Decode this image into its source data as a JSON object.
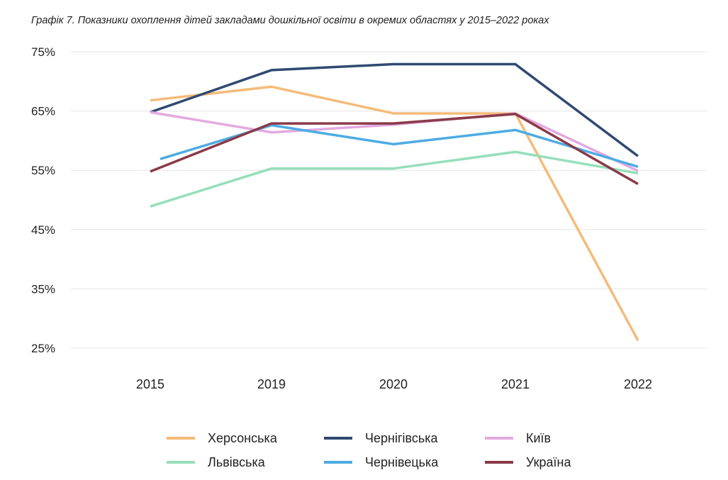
{
  "title": "Графік 7. Показники охоплення дітей закладами дошкільної освіти в окремих областях у 2015–2022 роках",
  "chart_data": {
    "type": "line",
    "title": "Графік 7. Показники охоплення дітей закладами дошкільної освіти в окремих областях у 2015–2022 роках",
    "xlabel": "",
    "ylabel": "",
    "categories": [
      "2015",
      "2019",
      "2020",
      "2021",
      "2022"
    ],
    "ylim": [
      25,
      75
    ],
    "yticks": [
      25,
      35,
      45,
      55,
      65,
      75
    ],
    "ytick_labels": [
      "25%",
      "35%",
      "45%",
      "55%",
      "65%",
      "75%"
    ],
    "grid": true,
    "legend_position": "bottom",
    "series": [
      {
        "name": "Херсонська",
        "color": "#f4bb79",
        "values": [
          66.8,
          69.1,
          64.6,
          64.6,
          26.3
        ]
      },
      {
        "name": "Чернігівська",
        "color": "#2f4a72",
        "values": [
          64.8,
          71.9,
          72.9,
          72.9,
          57.4
        ]
      },
      {
        "name": "Київ",
        "color": "#e3a9e0",
        "values": [
          64.8,
          61.4,
          62.7,
          64.6,
          54.9
        ]
      },
      {
        "name": "Львівська",
        "color": "#96dfba",
        "values": [
          48.9,
          55.3,
          55.3,
          58.1,
          54.5
        ]
      },
      {
        "name": "Чернівецька",
        "color": "#4dace3",
        "values": [
          56.9,
          62.6,
          59.4,
          61.8,
          55.6
        ]
      },
      {
        "name": "Україна",
        "color": "#8a3a47",
        "values": [
          54.8,
          62.9,
          62.9,
          64.5,
          52.7
        ]
      }
    ],
    "series_start_index": [
      0,
      0,
      0,
      0,
      0,
      0
    ]
  }
}
